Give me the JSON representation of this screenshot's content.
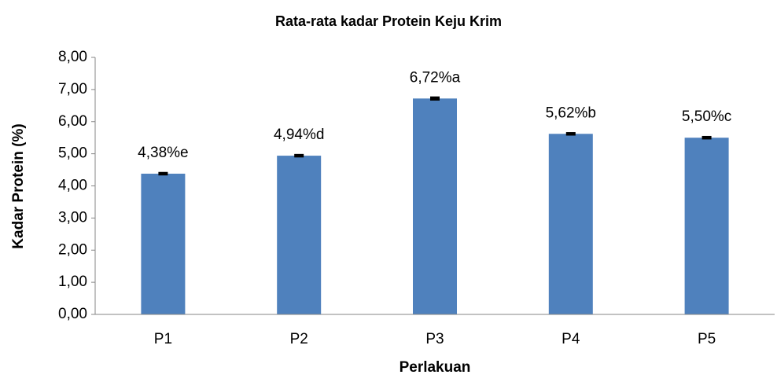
{
  "chart_data": {
    "type": "bar",
    "title": "Rata-rata kadar Protein Keju Krim",
    "xlabel": "Perlakuan",
    "ylabel": "Kadar Protein (%)",
    "categories": [
      "P1",
      "P2",
      "P3",
      "P4",
      "P5"
    ],
    "values": [
      4.38,
      4.94,
      6.72,
      5.62,
      5.5
    ],
    "errors": [
      0.03,
      0.03,
      0.04,
      0.03,
      0.03
    ],
    "value_labels": [
      "4,38%e",
      "4,94%d",
      "6,72%a",
      "5,62%b",
      "5,50%c"
    ],
    "color": "#4f81bd",
    "ylim": [
      0,
      8
    ],
    "yticks": [
      {
        "value": 0,
        "label": "0,00"
      },
      {
        "value": 1,
        "label": "1,00"
      },
      {
        "value": 2,
        "label": "2,00"
      },
      {
        "value": 3,
        "label": "3,00"
      },
      {
        "value": 4,
        "label": "4,00"
      },
      {
        "value": 5,
        "label": "5,00"
      },
      {
        "value": 6,
        "label": "6,00"
      },
      {
        "value": 7,
        "label": "7,00"
      },
      {
        "value": 8,
        "label": "8,00"
      }
    ],
    "grid": false
  }
}
